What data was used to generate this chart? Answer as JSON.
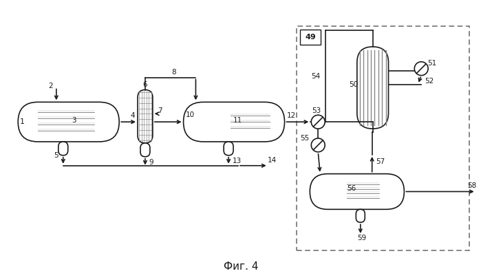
{
  "line_color": "#1a1a1a",
  "title": "Фиг. 4",
  "title_fontsize": 11,
  "fig_width": 6.99,
  "fig_height": 4.07,
  "lw": 1.2
}
